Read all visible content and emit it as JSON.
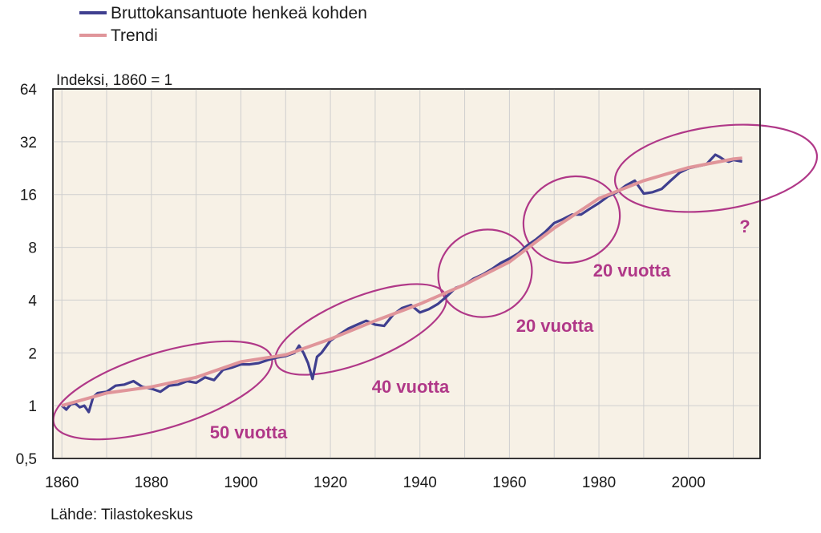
{
  "chart_data": {
    "type": "line",
    "ylabel": "Indeksi, 1860 = 1",
    "y_scale": "log2",
    "ylim": [
      0.5,
      64
    ],
    "y_ticks": [
      "0,5",
      "1",
      "2",
      "4",
      "8",
      "16",
      "32",
      "64"
    ],
    "xlim": [
      1858,
      2016
    ],
    "x_ticks": [
      "1860",
      "1880",
      "1900",
      "1920",
      "1940",
      "1960",
      "1980",
      "2000"
    ],
    "grid": true,
    "legend_position": "top-left",
    "source": "Lähde: Tilastokeskus",
    "colors": {
      "gdp": "#3f3f8f",
      "trend": "#e0959a",
      "annotation": "#b03888",
      "plot_bg": "#f7f1e6",
      "grid": "#cfcfcf"
    },
    "series": [
      {
        "name": "Bruttokansantuote henkeä kohden",
        "x": [
          1860,
          1861,
          1862,
          1863,
          1864,
          1865,
          1866,
          1867,
          1868,
          1870,
          1872,
          1874,
          1876,
          1878,
          1880,
          1882,
          1884,
          1886,
          1888,
          1890,
          1892,
          1894,
          1896,
          1898,
          1900,
          1902,
          1904,
          1906,
          1908,
          1910,
          1912,
          1913,
          1914,
          1915,
          1916,
          1917,
          1918,
          1920,
          1922,
          1924,
          1926,
          1928,
          1930,
          1932,
          1934,
          1936,
          1938,
          1940,
          1942,
          1944,
          1946,
          1948,
          1950,
          1952,
          1954,
          1956,
          1958,
          1960,
          1962,
          1964,
          1966,
          1968,
          1970,
          1972,
          1974,
          1976,
          1978,
          1980,
          1982,
          1984,
          1986,
          1988,
          1990,
          1992,
          1994,
          1996,
          1998,
          2000,
          2002,
          2004,
          2006,
          2007,
          2008,
          2009,
          2010,
          2012
        ],
        "values": [
          1.0,
          0.95,
          1.02,
          1.03,
          0.98,
          1.0,
          0.92,
          1.12,
          1.18,
          1.2,
          1.3,
          1.32,
          1.38,
          1.28,
          1.25,
          1.2,
          1.3,
          1.32,
          1.38,
          1.35,
          1.45,
          1.4,
          1.6,
          1.65,
          1.72,
          1.72,
          1.75,
          1.82,
          1.88,
          1.92,
          2.0,
          2.2,
          2.0,
          1.75,
          1.42,
          1.9,
          2.0,
          2.35,
          2.55,
          2.75,
          2.9,
          3.05,
          2.9,
          2.85,
          3.3,
          3.6,
          3.75,
          3.4,
          3.55,
          3.8,
          4.2,
          4.7,
          4.9,
          5.3,
          5.6,
          6.0,
          6.5,
          6.9,
          7.4,
          8.2,
          8.9,
          9.8,
          11,
          11.6,
          12.3,
          12.3,
          13.3,
          14.3,
          15.6,
          16.5,
          18,
          19.2,
          16.2,
          16.5,
          17.2,
          19.2,
          21.3,
          22.6,
          23.2,
          23.8,
          27.0,
          26.2,
          25.2,
          24.6,
          25.2,
          24.7
        ]
      },
      {
        "name": "Trendi",
        "x": [
          1860,
          1870,
          1880,
          1890,
          1900,
          1910,
          1920,
          1930,
          1940,
          1950,
          1960,
          1970,
          1980,
          1990,
          2000,
          2010,
          2012
        ],
        "values": [
          1.0,
          1.18,
          1.28,
          1.45,
          1.78,
          1.95,
          2.4,
          3.05,
          3.8,
          4.9,
          6.6,
          10.3,
          15.2,
          19.2,
          22.8,
          25.5,
          25.8
        ]
      }
    ],
    "annotations": [
      {
        "label": "50 vuotta",
        "span": [
          1860,
          1907
        ]
      },
      {
        "label": "40 vuotta",
        "span": [
          1907,
          1946
        ]
      },
      {
        "label": "20 vuotta",
        "span": [
          1945,
          1966
        ]
      },
      {
        "label": "20 vuotta",
        "span": [
          1966,
          1984
        ]
      },
      {
        "label": "?",
        "span": [
          1983,
          2020
        ]
      }
    ]
  },
  "legend": {
    "gdp_label": "Bruttokansantuote henkeä kohden",
    "trend_label": "Trendi"
  }
}
